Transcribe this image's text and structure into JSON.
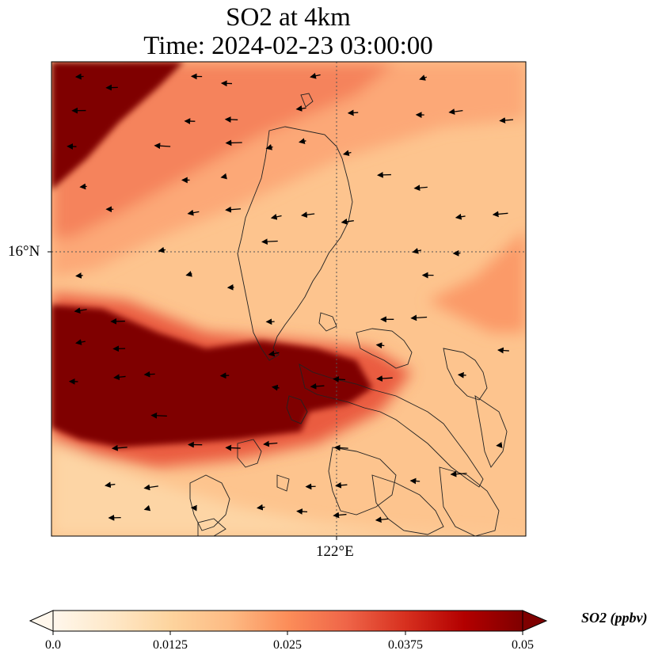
{
  "title": {
    "line1": "SO2 at 4km",
    "line2": "Time: 2024-02-23 03:00:00"
  },
  "map": {
    "variable": "SO2",
    "level": "4km",
    "colormap": "OrRd",
    "gridlines": "dotted",
    "lat_tick_label": "16°N",
    "lon_tick_label": "122°E",
    "wind_vectors": "westward arrows across domain"
  },
  "colorbar": {
    "unit_label": "SO2 (ppbv)",
    "ticks": [
      "0.0",
      "0.0125",
      "0.025",
      "0.0375",
      "0.05"
    ],
    "min": 0.0,
    "max": 0.05,
    "extend": "both",
    "colors": [
      "#fff7ec",
      "#fee8c8",
      "#fdd49e",
      "#fdbb84",
      "#fc8d59",
      "#ef6548",
      "#d7301f",
      "#b30000",
      "#7f0000"
    ]
  }
}
